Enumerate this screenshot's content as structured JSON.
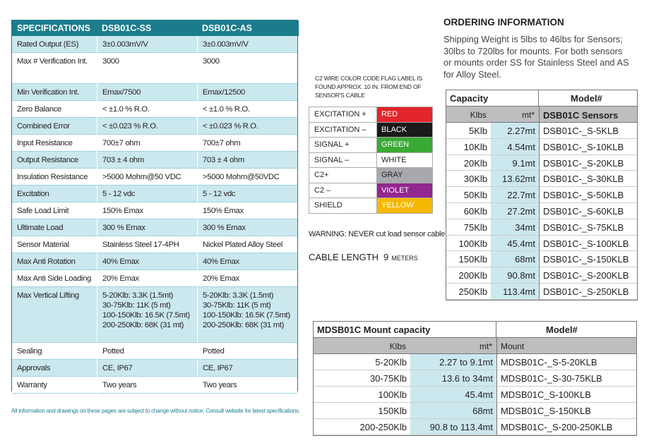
{
  "specifications": {
    "header": [
      "SPECIFICATIONS",
      "DSB01C-SS",
      "DSB01C-AS"
    ],
    "rows": [
      [
        "Rated Output (ES)",
        "3±0.003mV/V",
        "3±0.003mV/V"
      ],
      [
        "Max # Verification Int.",
        "3000",
        "3000"
      ],
      [
        "Min Verification Int.",
        "Emax/7500",
        "Emax/12500"
      ],
      [
        "Zero Balance",
        "< ±1.0 % R.O.",
        "< ±1.0 % R.O."
      ],
      [
        "Combined Error",
        "< ±0.023 % R.O.",
        "< ±0.023 % R.O."
      ],
      [
        "Input Resistance",
        "700±7 ohm",
        "700±7 ohm"
      ],
      [
        "Output Resistance",
        "703 ± 4 ohm",
        "703 ± 4 ohm"
      ],
      [
        "Insulation Resistance",
        ">5000 Mohm@50 VDC",
        ">5000 Mohm@50VDC"
      ],
      [
        "Excitation",
        "5 - 12 vdc",
        "5 - 12 vdc"
      ],
      [
        "Safe Load Limit",
        "150% Emax",
        "150% Emax"
      ],
      [
        "Ultimate Load",
        "300 % Emax",
        "300 % Emax"
      ],
      [
        "Sensor Material",
        "Stainless Steel 17-4PH",
        "Nickel Plated Alloy Steel"
      ],
      [
        "Max Anti Rotation",
        "40% Emax",
        "40% Emax"
      ],
      [
        "Max Anti Side Loading",
        "20% Emax",
        "20% Emax"
      ],
      [
        "Max Vertical Lifting",
        [
          "5-20Klb: 3.3K (1.5mt)",
          "30-75Klb: 11K (5 mt)",
          "100-150Klb: 16.5K (7.5mt)",
          "200-250Klb: 68K (31 mt)"
        ],
        [
          "5-20Klb: 3.3K (1.5mt)",
          "30-75Klb: 11K (5 mt)",
          "100-150Klb: 16.5K (7.5mt)",
          "200-250Klb: 68K (31 mt)"
        ]
      ],
      [
        "Sealing",
        "Potted",
        "Potted"
      ],
      [
        "Approvals",
        "CE, IP67",
        "CE, IP67"
      ],
      [
        "Warranty",
        "Two years",
        "Two years"
      ]
    ]
  },
  "footnote": "All information and drawings on these pages are subject to change without notice.  Consult website for latest specifications.",
  "wire_table": {
    "caption": "C2 WIRE COLOR CODE FLAG LABEL IS FOUND APPROX. 10 IN. FROM END OF SENSOR'S CABLE",
    "rows": [
      {
        "signal": "EXCITATION +",
        "color_name": "RED",
        "color": "#e3262b"
      },
      {
        "signal": "EXCITATION –",
        "color_name": "BLACK",
        "color": "#1a1a1a"
      },
      {
        "signal": "SIGNAL +",
        "color_name": "GREEN",
        "color": "#3aaa35"
      },
      {
        "signal": "SIGNAL –",
        "color_name": "WHITE",
        "color": "#ffffff"
      },
      {
        "signal": "C2+",
        "color_name": "GRAY",
        "color": "#a7a9ac"
      },
      {
        "signal": "C2 –",
        "color_name": "VIOLET",
        "color": "#92278f"
      },
      {
        "signal": "SHIELD",
        "color_name": "YELLOW",
        "color": "#f5b800"
      }
    ]
  },
  "warning": "WARNING: NEVER cut load sensor cable",
  "cable_length": {
    "label": "CABLE LENGTH",
    "value": "9",
    "unit": "METERS"
  },
  "ordering": {
    "title": "ORDERING INFORMATION",
    "text": "Shipping Weight is 5lbs to 46lbs for Sensors; 30lbs to 720lbs for mounts.  For both sensors or mounts order SS for Stainless Steel and AS for Alloy Steel."
  },
  "capacity_table": {
    "header": [
      "Capacity",
      "Model#"
    ],
    "subheader": [
      "Klbs",
      "mt*",
      "DSB01C Sensors"
    ],
    "rows": [
      [
        "5Klb",
        "2.27mt",
        "DSB01C-_S-5KLB"
      ],
      [
        "10Klb",
        "4.54mt",
        "DSB01C-_S-10KLB"
      ],
      [
        "20Klb",
        "9.1mt",
        "DSB01C-_S-20KLB"
      ],
      [
        "30Klb",
        "13.62mt",
        "DSB01C-_S-30KLB"
      ],
      [
        "50Klb",
        "22.7mt",
        "DSB01C-_S-50KLB"
      ],
      [
        "60Klb",
        "27.2mt",
        "DSB01C-_S-60KLB"
      ],
      [
        "75Klb",
        "34mt",
        "DSB01C-_S-75KLB"
      ],
      [
        "100Klb",
        "45.4mt",
        "DSB01C-_S-100KLB"
      ],
      [
        "150Klb",
        "68mt",
        "DSB01C-_S-150KLB"
      ],
      [
        "200Klb",
        "90.8mt",
        "DSB01C-_S-200KLB"
      ],
      [
        "250Klb",
        "113.4mt",
        "DSB01C-_S-250KLB"
      ]
    ]
  },
  "mount_table": {
    "header": [
      "MDSB01C Mount capacity",
      "Model#"
    ],
    "subheader": [
      "Klbs",
      "mt*",
      "Mount"
    ],
    "rows": [
      [
        "5-20Klb",
        "2.27 to 9.1mt",
        "MDSB01C-_S-5-20KLB"
      ],
      [
        "30-75Klb",
        "13.6 to 34mt",
        "MDSB01C-_S-30-75KLB"
      ],
      [
        "100Klb",
        "45.4mt",
        "MDSB01C_S-100KLB"
      ],
      [
        "150Klb",
        "68mt",
        "MDSB01C_S-150KLB"
      ],
      [
        "200-250Klb",
        "90.8 to 113.4mt",
        "MDSB01C-_S-200-250KLB"
      ]
    ]
  }
}
